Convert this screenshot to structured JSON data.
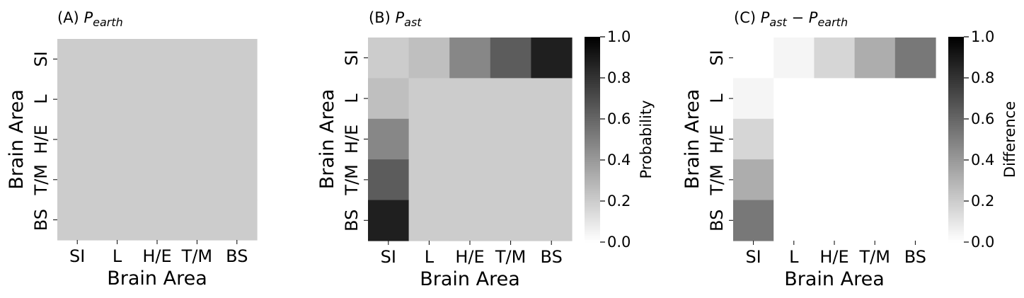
{
  "chart_data": [
    {
      "type": "heatmap",
      "panel": "(A)",
      "title_main": "P",
      "title_sub": "earth",
      "xlabel": "Brain Area",
      "ylabel": "Brain Area",
      "categories": [
        "SI",
        "L",
        "H/E",
        "T/M",
        "BS"
      ],
      "vmin": 0,
      "vmax": 1,
      "colorbar": false,
      "values": [
        [
          0.2,
          0.2,
          0.2,
          0.2,
          0.2
        ],
        [
          0.2,
          0.2,
          0.2,
          0.2,
          0.2
        ],
        [
          0.2,
          0.2,
          0.2,
          0.2,
          0.2
        ],
        [
          0.2,
          0.2,
          0.2,
          0.2,
          0.2
        ],
        [
          0.2,
          0.2,
          0.2,
          0.2,
          0.2
        ]
      ]
    },
    {
      "type": "heatmap",
      "panel": "(B)",
      "title_main": "P",
      "title_sub": "ast",
      "xlabel": "Brain Area",
      "ylabel": "Brain Area",
      "categories": [
        "SI",
        "L",
        "H/E",
        "T/M",
        "BS"
      ],
      "vmin": 0,
      "vmax": 1,
      "colorbar": true,
      "colorbar_label": "Probability",
      "colorbar_ticks": [
        "0.0",
        "0.2",
        "0.4",
        "0.6",
        "0.8",
        "1.0"
      ],
      "values": [
        [
          0.2,
          0.25,
          0.47,
          0.64,
          0.88
        ],
        [
          0.25,
          0.2,
          0.2,
          0.2,
          0.2
        ],
        [
          0.47,
          0.2,
          0.2,
          0.2,
          0.2
        ],
        [
          0.64,
          0.2,
          0.2,
          0.2,
          0.2
        ],
        [
          0.88,
          0.2,
          0.2,
          0.2,
          0.2
        ]
      ]
    },
    {
      "type": "heatmap",
      "panel": "(C)",
      "title_main": "P",
      "title_sub": "ast",
      "title_main2": "P",
      "title_sub2": "earth",
      "xlabel": "Brain Area",
      "ylabel": "Brain Area",
      "categories": [
        "SI",
        "L",
        "H/E",
        "T/M",
        "BS"
      ],
      "vmin": 0,
      "vmax": 1,
      "colorbar": true,
      "colorbar_label": "Difference",
      "colorbar_ticks": [
        "0.0",
        "0.2",
        "0.4",
        "0.6",
        "0.8",
        "1.0"
      ],
      "values": [
        [
          0.0,
          0.04,
          0.16,
          0.32,
          0.53
        ],
        [
          0.04,
          0.0,
          0.0,
          0.0,
          0.0
        ],
        [
          0.16,
          0.0,
          0.0,
          0.0,
          0.0
        ],
        [
          0.32,
          0.0,
          0.0,
          0.0,
          0.0
        ],
        [
          0.53,
          0.0,
          0.0,
          0.0,
          0.0
        ]
      ]
    }
  ]
}
